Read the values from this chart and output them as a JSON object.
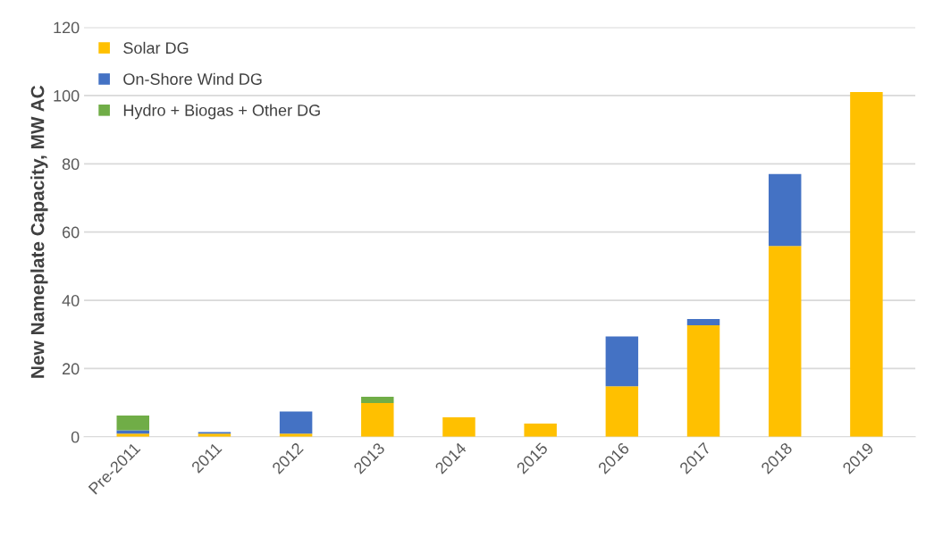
{
  "chart_data": {
    "type": "bar",
    "stacked": true,
    "ylabel": "New Nameplate Capacity, MW AC",
    "categories": [
      "Pre-2011",
      "2011",
      "2012",
      "2013",
      "2014",
      "2015",
      "2016",
      "2017",
      "2018",
      "2019"
    ],
    "series": [
      {
        "name": "Solar DG",
        "color": "#ffc000",
        "values": [
          0.9,
          0.9,
          0.9,
          9.9,
          5.7,
          3.9,
          14.8,
          32.7,
          55.9,
          101
        ]
      },
      {
        "name": "On-Shore Wind DG",
        "color": "#4472c4",
        "values": [
          1,
          0.5,
          6.5,
          null,
          null,
          null,
          14.6,
          1.8,
          21.1,
          null
        ]
      },
      {
        "name": "Hydro + Biogas + Other DG",
        "color": "#70ad47",
        "values": [
          4.3,
          null,
          null,
          1.8,
          null,
          null,
          null,
          null,
          null,
          null
        ]
      }
    ],
    "ylim": [
      0,
      120
    ],
    "yticks": [
      0,
      20,
      40,
      60,
      80,
      100,
      120
    ],
    "grid": "y",
    "legend": "top left"
  }
}
